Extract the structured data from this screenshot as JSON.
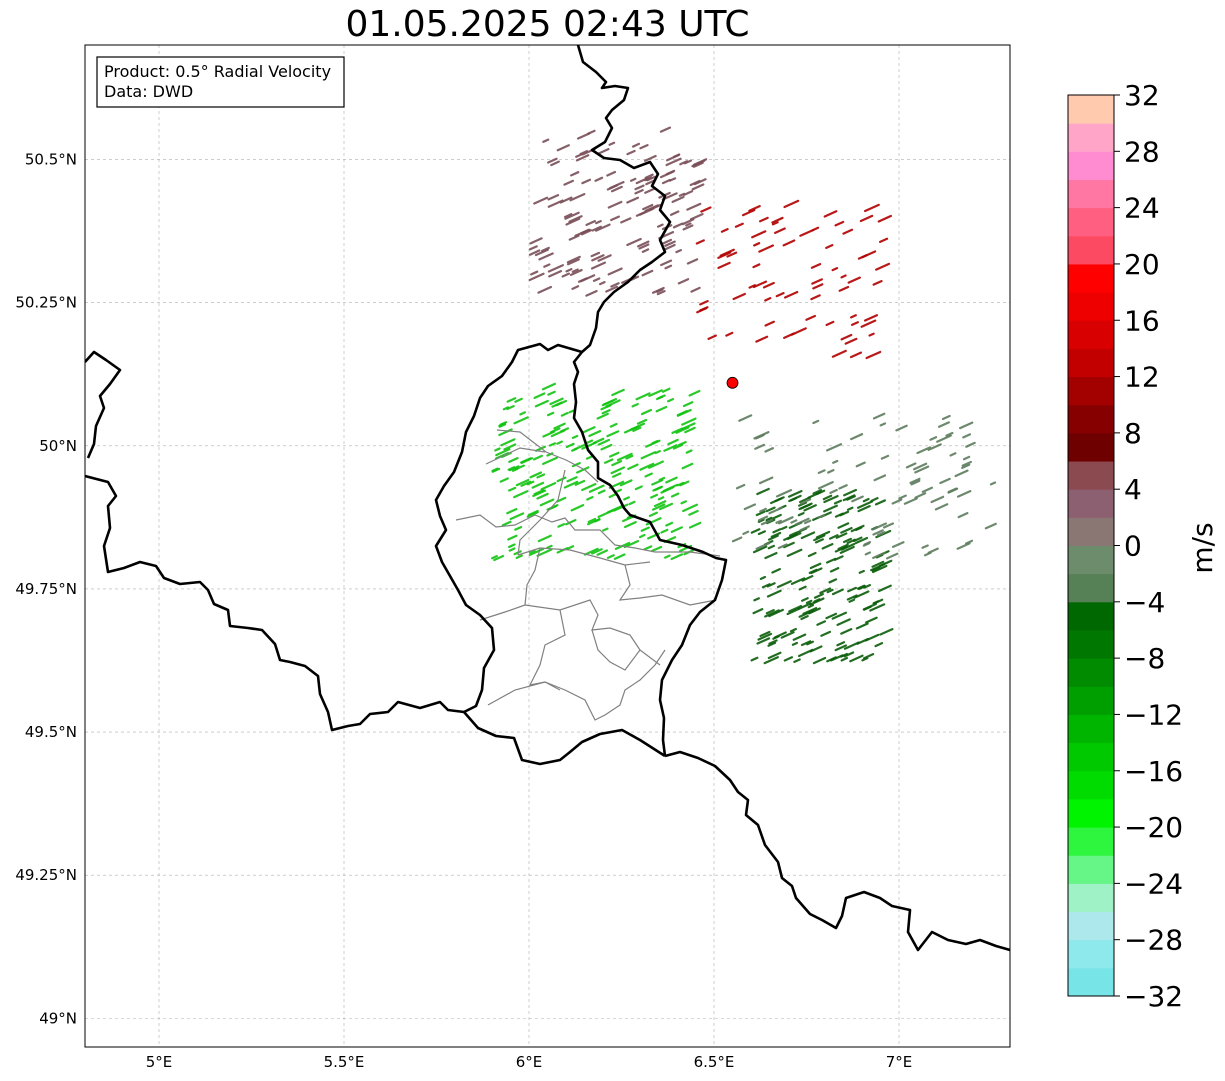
{
  "title": "01.05.2025 02:43 UTC",
  "info_box": {
    "line1": "Product: 0.5° Radial Velocity",
    "line2": "Data: DWD"
  },
  "map": {
    "extent": {
      "lon": [
        4.8,
        7.3
      ],
      "lat": [
        48.95,
        50.7
      ]
    },
    "lon_ticks": [
      {
        "value": 5.0,
        "label": "5°E"
      },
      {
        "value": 5.5,
        "label": "5.5°E"
      },
      {
        "value": 6.0,
        "label": "6°E"
      },
      {
        "value": 6.5,
        "label": "6.5°E"
      },
      {
        "value": 7.0,
        "label": "7°E"
      }
    ],
    "lat_ticks": [
      {
        "value": 49.0,
        "label": "49°N"
      },
      {
        "value": 49.25,
        "label": "49.25°N"
      },
      {
        "value": 49.5,
        "label": "49.5°N"
      },
      {
        "value": 49.75,
        "label": "49.75°N"
      },
      {
        "value": 50.0,
        "label": "50°N"
      },
      {
        "value": 50.25,
        "label": "50.25°N"
      },
      {
        "value": 50.5,
        "label": "50.5°N"
      }
    ],
    "grid": true,
    "radar_site": {
      "lon": 6.55,
      "lat": 50.11,
      "color": "#ff0000"
    },
    "borders_color": "#000000",
    "admin_color": "#808080"
  },
  "colorbar": {
    "label": "m/s",
    "min": -32,
    "max": 32,
    "step": 4,
    "tick_values": [
      -32,
      -28,
      -24,
      -20,
      -16,
      -12,
      -8,
      -4,
      0,
      4,
      8,
      12,
      16,
      20,
      24,
      28,
      32
    ],
    "tick_labels": [
      "−32",
      "−28",
      "−24",
      "−20",
      "−16",
      "−12",
      "−8",
      "−4",
      "0",
      "4",
      "8",
      "12",
      "16",
      "20",
      "24",
      "28",
      "32"
    ],
    "colors": [
      "#77e5e8",
      "#8ee9ec",
      "#ade8ed",
      "#9ef2c6",
      "#66f587",
      "#2ef53d",
      "#00f400",
      "#00db00",
      "#00c900",
      "#00b500",
      "#009f00",
      "#008b00",
      "#007700",
      "#006800",
      "#568056",
      "#6c8c6c",
      "#8a7774",
      "#8c6070",
      "#8b4a50",
      "#6e0000",
      "#860000",
      "#a30000",
      "#c30000",
      "#d80000",
      "#ee0000",
      "#ff0000",
      "#fd4a63",
      "#ff5f80",
      "#ff77a2",
      "#ff8cd1",
      "#ffa6c8",
      "#ffcaae"
    ]
  },
  "echo_regions": [
    {
      "name": "north-receding",
      "lon": [
        6.0,
        6.45
      ],
      "lat": [
        50.26,
        50.55
      ],
      "color": "#7a4f58",
      "count": 140
    },
    {
      "name": "northeast-receding",
      "lon": [
        6.45,
        6.95
      ],
      "lat": [
        50.15,
        50.42
      ],
      "color": "#b20000",
      "count": 70
    },
    {
      "name": "west-approaching",
      "lon": [
        5.9,
        6.45
      ],
      "lat": [
        49.8,
        50.1
      ],
      "color": "#11c411",
      "count": 220
    },
    {
      "name": "east-approaching-dark",
      "lon": [
        6.6,
        6.95
      ],
      "lat": [
        49.62,
        49.92
      ],
      "color": "#0b5e0b",
      "count": 180
    },
    {
      "name": "east-mixed",
      "lon": [
        6.55,
        7.25
      ],
      "lat": [
        49.8,
        50.05
      ],
      "color": "#5e7d5e",
      "count": 90
    }
  ]
}
